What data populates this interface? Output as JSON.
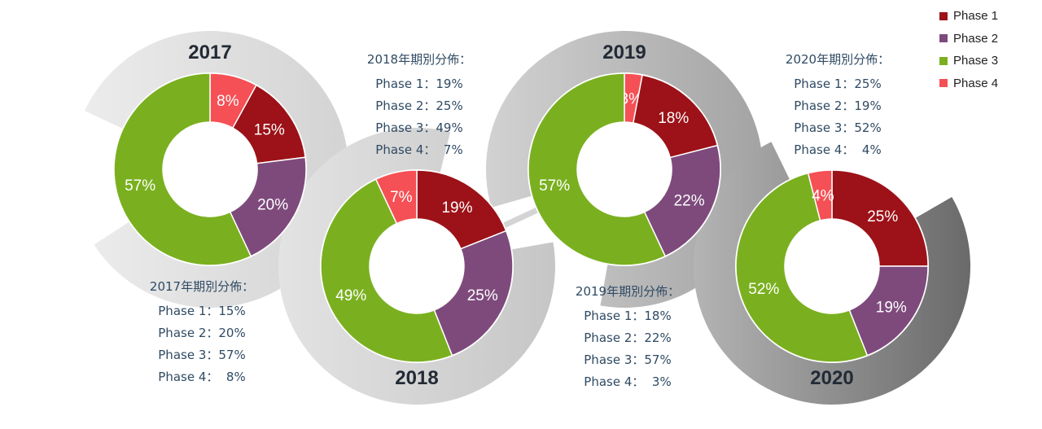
{
  "colors": {
    "Phase 1": "#9c1218",
    "Phase 2": "#7e4a7c",
    "Phase 3": "#7ab01f",
    "Phase 4": "#f55055"
  },
  "legend": [
    "Phase 1",
    "Phase 2",
    "Phase 3",
    "Phase 4"
  ],
  "chart_data": [
    {
      "type": "pie",
      "variant": "donut",
      "title": "2017",
      "categories": [
        "Phase 1",
        "Phase 2",
        "Phase 3",
        "Phase 4"
      ],
      "values": [
        15,
        20,
        57,
        8
      ],
      "labels": [
        "15%",
        "20%",
        "57%",
        "8%"
      ],
      "info": {
        "title": "2017年期別分佈：",
        "lines": [
          "Phase 1：15%",
          "Phase 2：20%",
          "Phase 3：57%",
          "Phase 4：  8%"
        ]
      }
    },
    {
      "type": "pie",
      "variant": "donut",
      "title": "2018",
      "categories": [
        "Phase 1",
        "Phase 2",
        "Phase 3",
        "Phase 4"
      ],
      "values": [
        19,
        25,
        49,
        7
      ],
      "labels": [
        "19%",
        "25%",
        "49%",
        "7%"
      ],
      "info": {
        "title": "2018年期別分佈：",
        "lines": [
          "Phase 1：19%",
          "Phase 2：25%",
          "Phase 3：49%",
          "Phase 4：  7%"
        ]
      }
    },
    {
      "type": "pie",
      "variant": "donut",
      "title": "2019",
      "categories": [
        "Phase 1",
        "Phase 2",
        "Phase 3",
        "Phase 4"
      ],
      "values": [
        18,
        22,
        57,
        3
      ],
      "labels": [
        "18%",
        "22%",
        "57%",
        "3%"
      ],
      "info": {
        "title": "2019年期別分佈：",
        "lines": [
          "Phase 1：18%",
          "Phase 2：22%",
          "Phase 3：57%",
          "Phase 4：  3%"
        ]
      }
    },
    {
      "type": "pie",
      "variant": "donut",
      "title": "2020",
      "categories": [
        "Phase 1",
        "Phase 2",
        "Phase 3",
        "Phase 4"
      ],
      "values": [
        25,
        19,
        52,
        4
      ],
      "labels": [
        "25%",
        "19%",
        "52%",
        "4%"
      ],
      "info": {
        "title": "2020年期別分佈：",
        "lines": [
          "Phase 1：25%",
          "Phase 2：19%",
          "Phase 3：52%",
          "Phase 4：  4%"
        ]
      }
    }
  ]
}
